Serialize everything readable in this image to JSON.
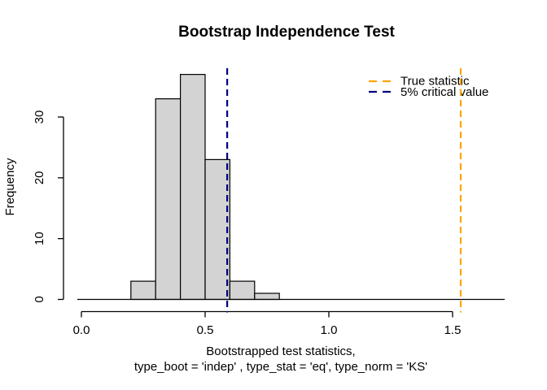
{
  "page": {
    "background": "#ffffff"
  },
  "chart_data": {
    "type": "bar",
    "subtype": "histogram",
    "title": "Bootstrap Independence Test",
    "xlabel_lines": [
      "Bootstrapped test statistics,",
      "type_boot = 'indep' , type_stat = 'eq', type_norm = 'KS'"
    ],
    "ylabel": "Frequency",
    "bins": {
      "breaks": [
        0.2,
        0.3,
        0.4,
        0.5,
        0.6,
        0.7,
        0.8
      ],
      "counts": [
        3,
        33,
        37,
        23,
        3,
        1
      ]
    },
    "bar_fill": "#d3d3d3",
    "bar_stroke": "#000000",
    "x_ticks": [
      {
        "value": 0.0,
        "label": "0.0"
      },
      {
        "value": 0.5,
        "label": "0.5"
      },
      {
        "value": 1.0,
        "label": "1.0"
      },
      {
        "value": 1.5,
        "label": "1.5"
      }
    ],
    "y_ticks": [
      {
        "value": 0,
        "label": "0"
      },
      {
        "value": 10,
        "label": "10"
      },
      {
        "value": 20,
        "label": "20"
      },
      {
        "value": 30,
        "label": "30"
      }
    ],
    "xlim": [
      0,
      1.7
    ],
    "ylim": [
      0,
      38
    ],
    "grid": false,
    "legend_position": "top-right",
    "vlines": [
      {
        "name": "true-statistic",
        "x": 1.533,
        "color": "#FFA500",
        "style": "dashed"
      },
      {
        "name": "critical-value-5pct",
        "x": 0.589,
        "color": "#000080",
        "style": "dashed"
      }
    ],
    "legend": [
      {
        "label": "True statistic",
        "color": "#FFA500"
      },
      {
        "label": "5% critical value",
        "color": "#000080"
      }
    ]
  }
}
